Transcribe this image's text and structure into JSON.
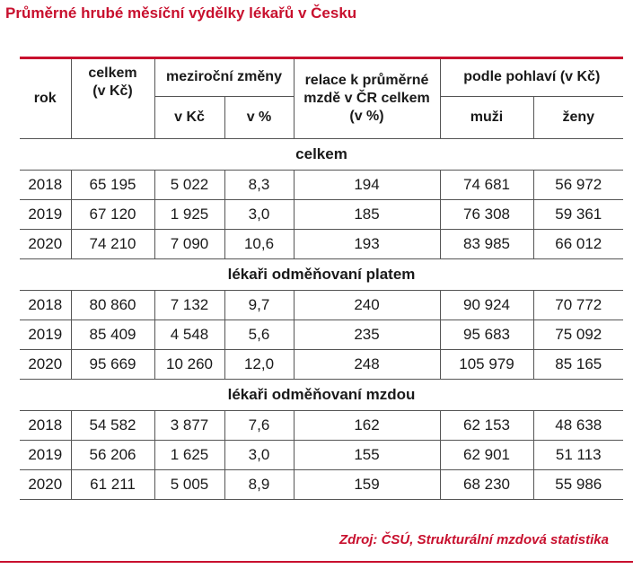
{
  "title": "Průměrné hrubé měsíční výdělky lékařů v Česku",
  "headers": {
    "rok": "rok",
    "celkem": "celkem\n(v Kč)",
    "mezirocni": "meziroční změny",
    "v_kc": "v Kč",
    "v_pct": "v %",
    "relace": "relace k průměrné\nmzdě v ČR celkem\n(v %)",
    "pohlavi": "podle pohlaví (v Kč)",
    "muzi": "muži",
    "zeny": "ženy"
  },
  "sections": [
    {
      "title": "celkem",
      "rows": [
        [
          "2018",
          "65 195",
          "5 022",
          "8,3",
          "194",
          "74 681",
          "56 972"
        ],
        [
          "2019",
          "67 120",
          "1 925",
          "3,0",
          "185",
          "76 308",
          "59 361"
        ],
        [
          "2020",
          "74 210",
          "7 090",
          "10,6",
          "193",
          "83 985",
          "66 012"
        ]
      ]
    },
    {
      "title": "lékaři odměňovaní platem",
      "rows": [
        [
          "2018",
          "80 860",
          "7 132",
          "9,7",
          "240",
          "90 924",
          "70 772"
        ],
        [
          "2019",
          "85 409",
          "4 548",
          "5,6",
          "235",
          "95 683",
          "75 092"
        ],
        [
          "2020",
          "95 669",
          "10 260",
          "12,0",
          "248",
          "105 979",
          "85 165"
        ]
      ]
    },
    {
      "title": "lékaři odměňovaní mzdou",
      "rows": [
        [
          "2018",
          "54 582",
          "3 877",
          "7,6",
          "162",
          "62 153",
          "48 638"
        ],
        [
          "2019",
          "56 206",
          "1 625",
          "3,0",
          "155",
          "62 901",
          "51 113"
        ],
        [
          "2020",
          "61 211",
          "5 005",
          "8,9",
          "159",
          "68 230",
          "55 986"
        ]
      ]
    }
  ],
  "source": "Zdroj: ČSÚ, Strukturální mzdová statistika",
  "colors": {
    "accent": "#c8102e",
    "rule": "#555555"
  }
}
